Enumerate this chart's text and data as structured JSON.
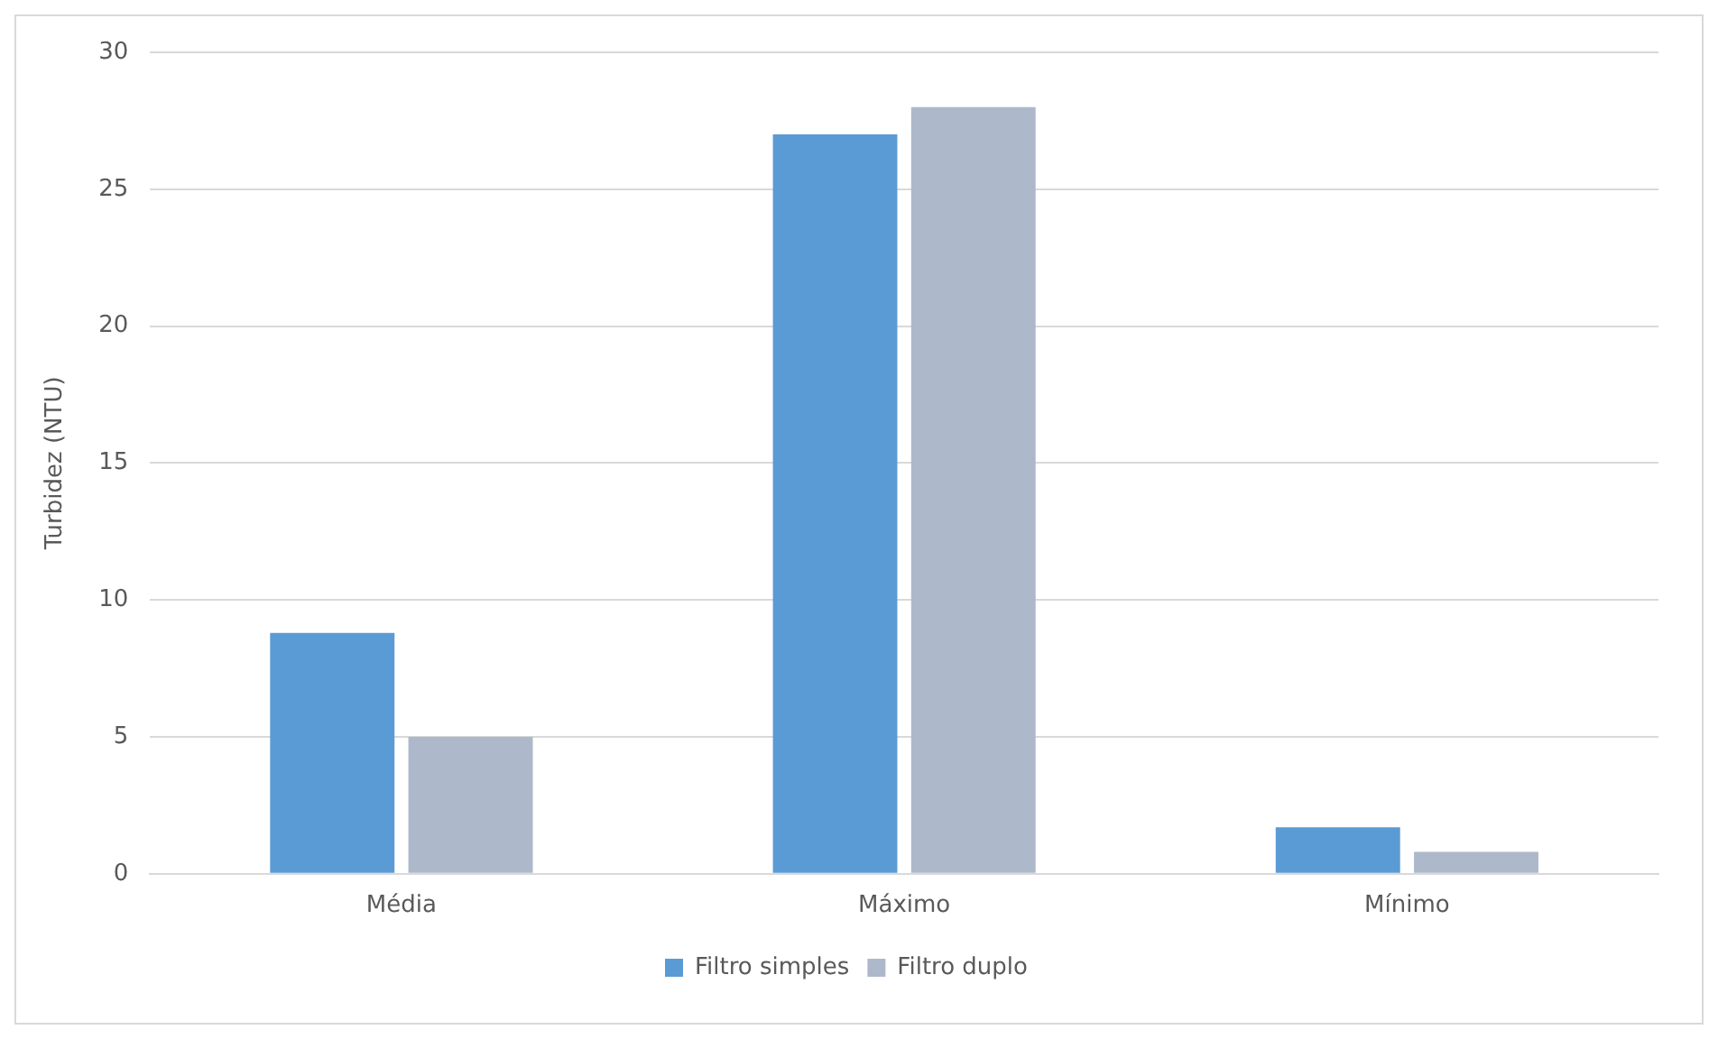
{
  "chart_data": {
    "type": "bar",
    "ylabel": "Turbidez (NTU)",
    "categories": [
      "Média",
      "Máximo",
      "Mínimo"
    ],
    "series": [
      {
        "name": "Filtro simples",
        "color": "#5b9bd5",
        "values": [
          8.8,
          27,
          1.7
        ]
      },
      {
        "name": "Filtro duplo",
        "color": "#adb9ca",
        "values": [
          5,
          28,
          0.8
        ]
      }
    ],
    "ylim": [
      0,
      30
    ],
    "yticks": [
      0,
      5,
      10,
      15,
      20,
      25,
      30
    ],
    "grid": "y",
    "legend": "bottom"
  }
}
